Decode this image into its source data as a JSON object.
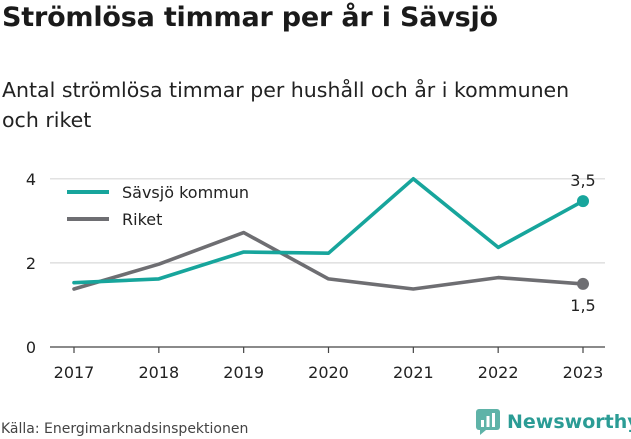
{
  "title": "Strömlösa timmar per år i Sävsjö",
  "subtitle": "Antal strömlösa timmar per hushåll och år i kommunen och riket",
  "source": "Källa: Energimarknadsinspektionen",
  "brand": {
    "name": "Newsworthy",
    "icon": "newsworthy-logo-icon",
    "color": "#2b9c95"
  },
  "chart_data": {
    "type": "line",
    "x": [
      "2017",
      "2018",
      "2019",
      "2020",
      "2021",
      "2022",
      "2023"
    ],
    "series": [
      {
        "name": "Sävsjö kommun",
        "color": "#17a59c",
        "values": [
          1.53,
          1.62,
          2.26,
          2.23,
          4.0,
          2.37,
          3.47
        ]
      },
      {
        "name": "Riket",
        "color": "#6e6e72",
        "values": [
          1.38,
          1.97,
          2.72,
          1.62,
          1.38,
          1.65,
          1.5
        ]
      }
    ],
    "yticks": [
      0,
      2,
      4
    ],
    "ylim": [
      0,
      4.4
    ],
    "grid": true,
    "legend": "top-left",
    "end_labels": [
      "3,5",
      "1,5"
    ]
  }
}
